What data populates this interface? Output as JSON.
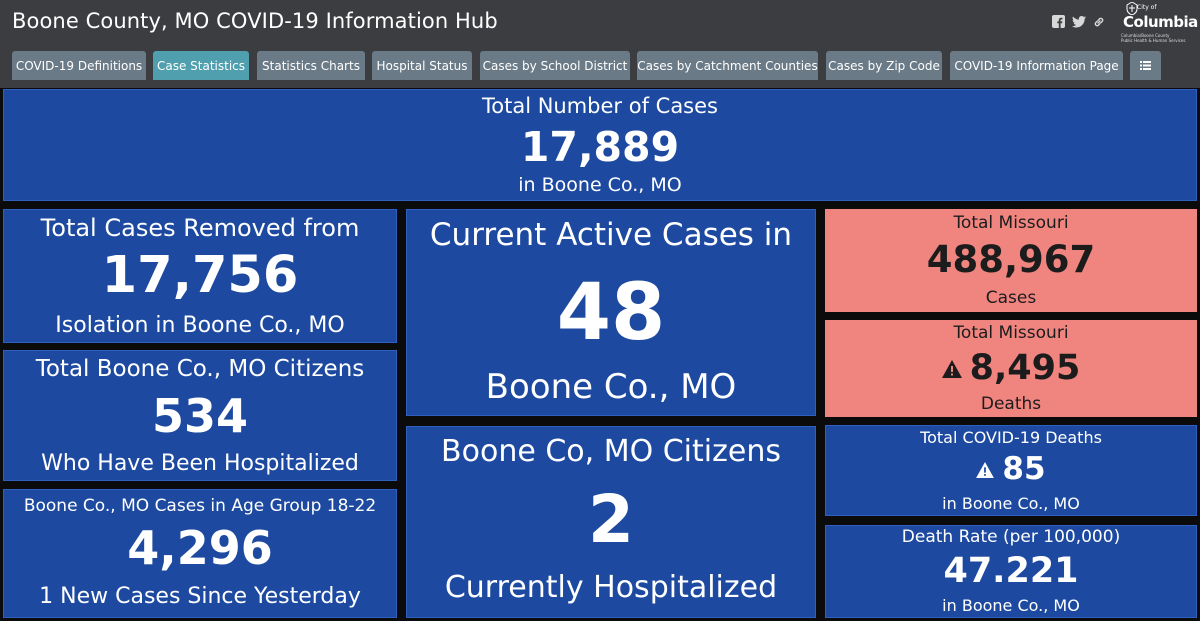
{
  "app": {
    "title": "Boone County, MO COVID-19 Information Hub"
  },
  "header_icons": [
    "facebook-icon",
    "twitter-icon",
    "link-icon"
  ],
  "logo": {
    "city_of": "City of",
    "name": "Columbia",
    "department_line1": "Columbia/Boone County",
    "department_line2": "Public Health & Human Services"
  },
  "tabs": [
    {
      "label": "COVID-19 Definitions",
      "active": false
    },
    {
      "label": "Case Statistics",
      "active": true
    },
    {
      "label": "Statistics Charts",
      "active": false
    },
    {
      "label": "Hospital Status",
      "active": false
    },
    {
      "label": "Cases by School District",
      "active": false
    },
    {
      "label": "Cases by Catchment Counties",
      "active": false
    },
    {
      "label": "Cases by Zip Code",
      "active": false
    },
    {
      "label": "COVID-19 Information Page",
      "active": false
    },
    {
      "label": "",
      "icon": "list-icon",
      "active": false
    }
  ],
  "colors": {
    "header_bg": "#3b3d40",
    "tab_bg": "#6b7a87",
    "tab_active_bg": "#4f9fae",
    "tile_blue": "#1d4aa0",
    "tile_red": "#f08580",
    "page_bg": "#0b0b0b"
  },
  "tiles": {
    "total_cases": {
      "title": "Total Number of Cases",
      "value": "17,889",
      "caption": "in Boone Co., MO"
    },
    "removed": {
      "title": "Total Cases Removed from",
      "value": "17,756",
      "caption": "Isolation in Boone Co., MO"
    },
    "hospitalized_total": {
      "title": "Total Boone Co., MO Citizens",
      "value": "534",
      "caption": "Who Have Been Hospitalized"
    },
    "age_group": {
      "title": "Boone Co., MO Cases in Age Group 18-22",
      "value": "4,296",
      "caption": "1 New Cases Since Yesterday"
    },
    "active": {
      "title": "Current Active Cases in",
      "value": "48",
      "caption": "Boone Co., MO"
    },
    "currently_hospitalized": {
      "title": "Boone Co, MO Citizens",
      "value": "2",
      "caption": "Currently Hospitalized"
    },
    "mo_cases": {
      "title": "Total Missouri",
      "value": "488,967",
      "caption": "Cases"
    },
    "mo_deaths": {
      "title": "Total Missouri",
      "value": "8,495",
      "caption": "Deaths",
      "icon": "warning-icon"
    },
    "boone_deaths": {
      "title": "Total COVID-19 Deaths",
      "value": "85",
      "caption": "in Boone Co., MO",
      "icon": "warning-icon"
    },
    "death_rate": {
      "title": "Death Rate (per 100,000)",
      "value": "47.221",
      "caption": "in Boone Co., MO"
    }
  }
}
